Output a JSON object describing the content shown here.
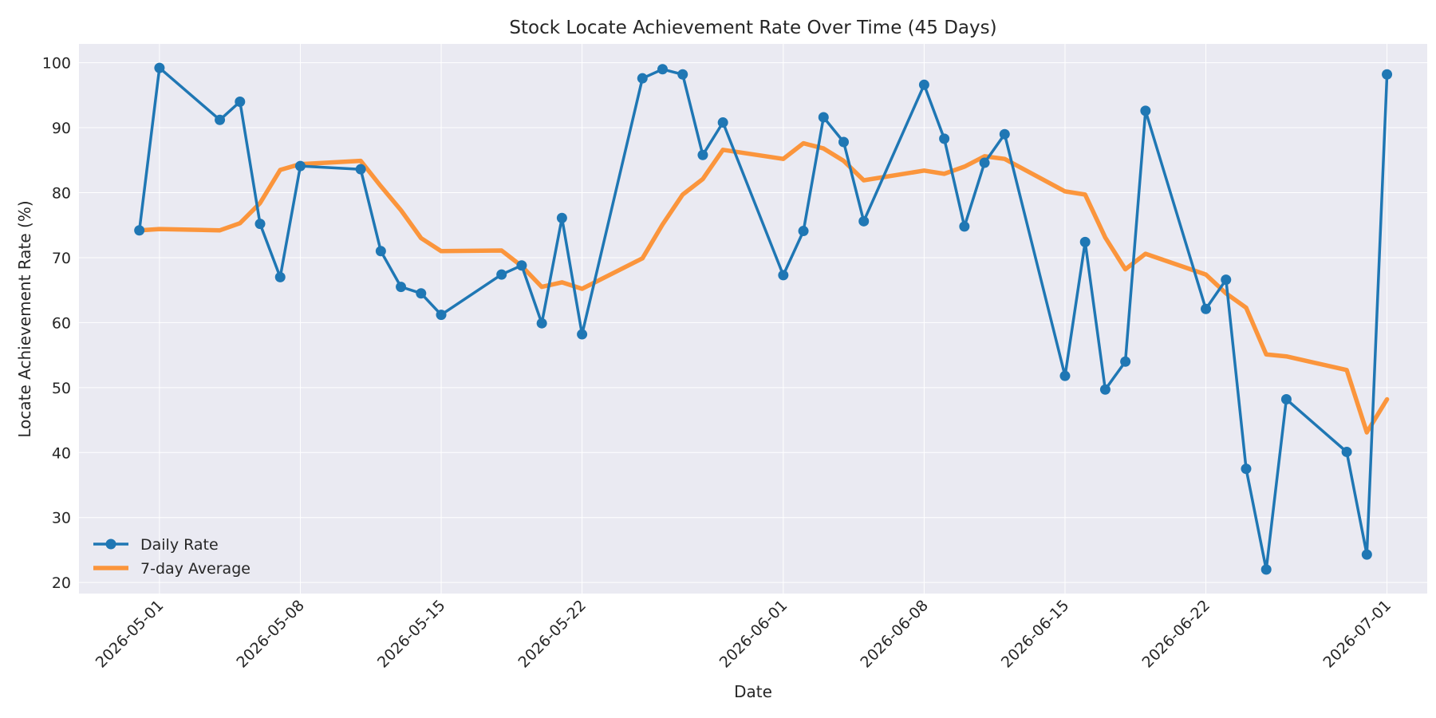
{
  "chart_data": {
    "type": "line",
    "title": "Stock Locate Achievement Rate Over Time (45 Days)",
    "xlabel": "Date",
    "ylabel": "Locate Achievement Rate (%)",
    "xlim": [
      "2026-04-27",
      "2026-07-03"
    ],
    "ylim": [
      18.3,
      102.9
    ],
    "x_ticks": [
      "2026-05-01",
      "2026-05-08",
      "2026-05-15",
      "2026-05-22",
      "2026-06-01",
      "2026-06-08",
      "2026-06-15",
      "2026-06-22",
      "2026-07-01"
    ],
    "y_ticks": [
      20,
      30,
      40,
      50,
      60,
      70,
      80,
      90,
      100
    ],
    "grid": true,
    "legend_position": "lower-left",
    "colors": {
      "daily": "#1f77b4",
      "average": "#ff7f0e",
      "plot_bg": "#eaeaf2",
      "grid": "#ffffff"
    },
    "x": [
      "2026-04-30",
      "2026-05-01",
      "2026-05-04",
      "2026-05-05",
      "2026-05-06",
      "2026-05-07",
      "2026-05-08",
      "2026-05-11",
      "2026-05-12",
      "2026-05-13",
      "2026-05-14",
      "2026-05-15",
      "2026-05-18",
      "2026-05-19",
      "2026-05-20",
      "2026-05-21",
      "2026-05-22",
      "2026-05-25",
      "2026-05-26",
      "2026-05-27",
      "2026-05-28",
      "2026-05-29",
      "2026-06-01",
      "2026-06-02",
      "2026-06-03",
      "2026-06-04",
      "2026-06-05",
      "2026-06-08",
      "2026-06-09",
      "2026-06-10",
      "2026-06-11",
      "2026-06-12",
      "2026-06-15",
      "2026-06-16",
      "2026-06-17",
      "2026-06-18",
      "2026-06-19",
      "2026-06-22",
      "2026-06-23",
      "2026-06-24",
      "2026-06-25",
      "2026-06-26",
      "2026-06-29",
      "2026-06-30",
      "2026-07-01"
    ],
    "series": [
      {
        "name": "Daily Rate",
        "values": [
          74.2,
          99.2,
          91.2,
          94.0,
          75.2,
          67.0,
          84.1,
          83.6,
          71.0,
          65.5,
          64.5,
          61.2,
          67.4,
          68.8,
          59.9,
          76.1,
          58.2,
          97.6,
          99.0,
          98.2,
          85.8,
          90.8,
          67.3,
          74.1,
          91.6,
          87.8,
          75.6,
          96.6,
          88.3,
          74.8,
          84.6,
          89.0,
          51.8,
          72.4,
          49.7,
          54.0,
          92.6,
          62.1,
          66.6,
          37.5,
          22.0,
          48.2,
          40.1,
          24.3,
          98.2
        ]
      },
      {
        "name": "7-day Average",
        "values": [
          74.2,
          74.4,
          74.2,
          75.3,
          78.4,
          83.5,
          84.4,
          84.9,
          81.0,
          77.3,
          73.0,
          71.0,
          71.1,
          68.7,
          65.5,
          66.2,
          65.2,
          69.9,
          75.1,
          79.7,
          82.1,
          86.6,
          85.2,
          87.6,
          86.8,
          84.9,
          81.9,
          83.4,
          82.9,
          84.0,
          85.6,
          85.2,
          80.2,
          79.7,
          73.1,
          68.2,
          70.6,
          67.4,
          64.5,
          62.3,
          55.1,
          54.8,
          52.7,
          43.1,
          48.2
        ]
      }
    ]
  }
}
